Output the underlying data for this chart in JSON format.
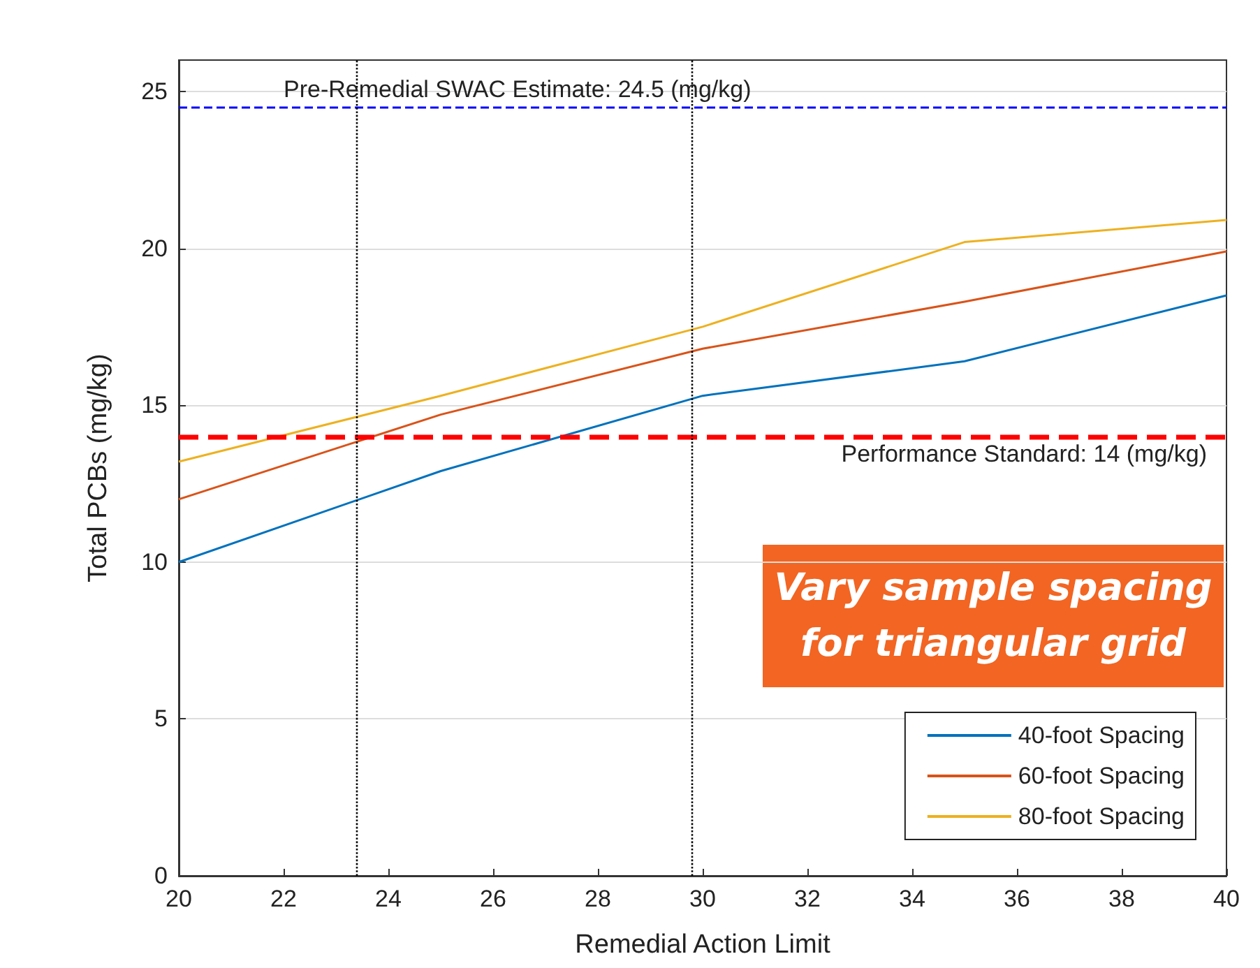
{
  "chart_data": {
    "type": "line",
    "xlabel": "Remedial Action Limit",
    "ylabel": "Total PCBs (mg/kg)",
    "x": [
      20,
      25,
      30,
      35,
      40
    ],
    "series": [
      {
        "name": "40-foot Spacing",
        "color": "#0072bd",
        "values": [
          10,
          12.9,
          15.3,
          16.4,
          18.5
        ]
      },
      {
        "name": "60-foot Spacing",
        "color": "#d95319",
        "values": [
          12.0,
          14.7,
          16.8,
          18.3,
          19.9
        ]
      },
      {
        "name": "80-foot Spacing",
        "color": "#edb120",
        "values": [
          13.2,
          15.3,
          17.5,
          20.2,
          20.9
        ]
      }
    ],
    "xlim": [
      20,
      40
    ],
    "xticks": [
      20,
      22,
      24,
      26,
      28,
      30,
      32,
      34,
      36,
      38,
      40
    ],
    "ylim": [
      0,
      26
    ],
    "yticks": [
      0,
      5,
      10,
      15,
      20,
      25
    ],
    "ref_lines": [
      {
        "axis": "y",
        "value": 24.5,
        "label": "Pre-Remedial SWAC Estimate: 24.5 (mg/kg)",
        "color": "#0000ff",
        "line_style": "dashed"
      },
      {
        "axis": "y",
        "value": 14,
        "label": "Performance Standard: 14 (mg/kg)",
        "color": "#ff0000",
        "line_style": "dashed"
      },
      {
        "axis": "x",
        "value": 23.4,
        "color": "#000000",
        "line_style": "dotted"
      },
      {
        "axis": "x",
        "value": 29.8,
        "color": "#000000",
        "line_style": "dotted"
      }
    ],
    "annotations": [
      "Vary sample spacing for triangular grid"
    ],
    "grid": "y",
    "legend": "bottom right",
    "marker": "none",
    "line_style": "solid"
  }
}
